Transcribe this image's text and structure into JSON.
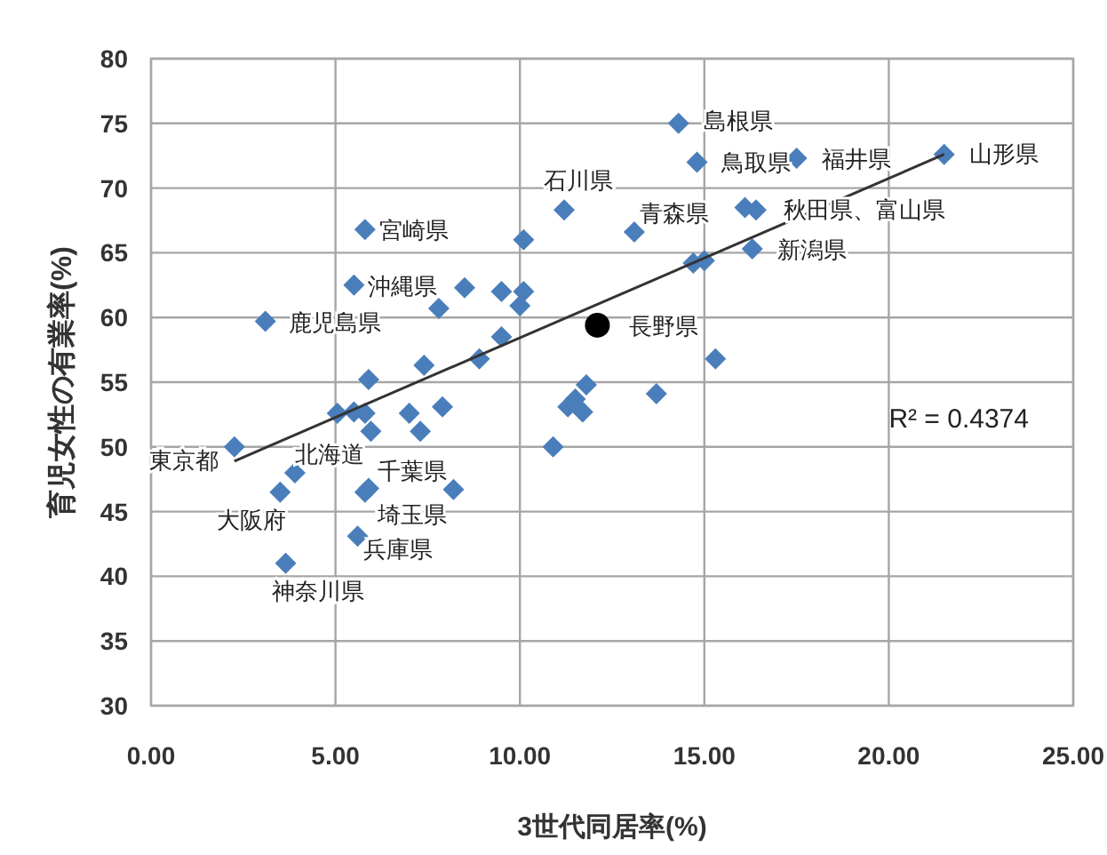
{
  "chart_data": {
    "type": "scatter",
    "xlabel": "3世代同居率(%)",
    "ylabel": "育児女性の有業率(%)",
    "xlim": [
      0,
      25
    ],
    "ylim": [
      30,
      80
    ],
    "xticks": [
      {
        "value": 0,
        "label": "0.00"
      },
      {
        "value": 5,
        "label": "5.00"
      },
      {
        "value": 10,
        "label": "10.00"
      },
      {
        "value": 15,
        "label": "15.00"
      },
      {
        "value": 20,
        "label": "20.00"
      },
      {
        "value": 25,
        "label": "25.00"
      }
    ],
    "yticks": [
      30,
      35,
      40,
      45,
      50,
      55,
      60,
      65,
      70,
      75,
      80
    ],
    "grid": true,
    "series": [
      {
        "marker": "diamond",
        "color": "#4a7ebb",
        "x": [
          3.1,
          5.8,
          5.5,
          7.8,
          8.5,
          9.5,
          10.0,
          10.1,
          9.5,
          8.9,
          7.4,
          5.9,
          14.3,
          14.8,
          17.5,
          21.5,
          11.2,
          13.1,
          16.1,
          16.4,
          16.3,
          14.7,
          15.0,
          15.3,
          10.1,
          11.8,
          11.3,
          11.7,
          11.5,
          13.7,
          10.9,
          5.05,
          5.5,
          5.8,
          5.96,
          7.0,
          7.9,
          7.3,
          2.26,
          3.9,
          3.5,
          5.8,
          5.9,
          8.2,
          5.6,
          3.65
        ],
        "values": [
          59.7,
          66.8,
          62.5,
          60.7,
          62.3,
          62.0,
          60.9,
          66.0,
          58.5,
          56.8,
          56.3,
          55.2,
          75.0,
          72.0,
          72.3,
          72.6,
          68.3,
          66.6,
          68.5,
          68.3,
          65.3,
          64.2,
          64.4,
          56.8,
          62.0,
          54.8,
          53.1,
          52.7,
          53.7,
          54.1,
          50.0,
          52.6,
          52.7,
          52.6,
          51.2,
          52.6,
          53.1,
          51.2,
          50.0,
          48.0,
          46.5,
          46.5,
          46.8,
          46.7,
          43.1,
          41.0
        ]
      },
      {
        "marker": "circle",
        "color": "#000000",
        "x": [
          12.1
        ],
        "values": [
          59.4
        ]
      },
      {
        "type": "line",
        "color": "#333333",
        "x": [
          2.26,
          21.5
        ],
        "values": [
          48.9,
          72.6
        ]
      }
    ],
    "annotations": [
      {
        "text": "東京都",
        "x": 2.26,
        "y": 50.0
      },
      {
        "text": "北海道",
        "x": 3.9,
        "y": 48.0
      },
      {
        "text": "大阪府",
        "x": 3.5,
        "y": 46.5
      },
      {
        "text": "神奈川県",
        "x": 3.65,
        "y": 41.0
      },
      {
        "text": "兵庫県",
        "x": 5.6,
        "y": 43.1
      },
      {
        "text": "埼玉県",
        "x": 5.8,
        "y": 46.5
      },
      {
        "text": "千葉県",
        "x": 5.9,
        "y": 46.8
      },
      {
        "text": "鹿児島県",
        "x": 3.1,
        "y": 59.7
      },
      {
        "text": "沖縄県",
        "x": 5.5,
        "y": 62.5
      },
      {
        "text": "宮崎県",
        "x": 5.8,
        "y": 66.8
      },
      {
        "text": "石川県",
        "x": 11.2,
        "y": 68.3
      },
      {
        "text": "青森県",
        "x": 13.1,
        "y": 66.6
      },
      {
        "text": "島根県",
        "x": 14.3,
        "y": 75.0
      },
      {
        "text": "鳥取県",
        "x": 14.8,
        "y": 72.0
      },
      {
        "text": "福井県",
        "x": 17.5,
        "y": 72.3
      },
      {
        "text": "山形県",
        "x": 21.5,
        "y": 72.6
      },
      {
        "text": "秋田県、富山県",
        "x": 16.1,
        "y": 68.5
      },
      {
        "text": "新潟県",
        "x": 16.3,
        "y": 65.3
      },
      {
        "text": "長野県",
        "x": 12.1,
        "y": 59.4
      },
      "R² = 0.4374"
    ]
  }
}
